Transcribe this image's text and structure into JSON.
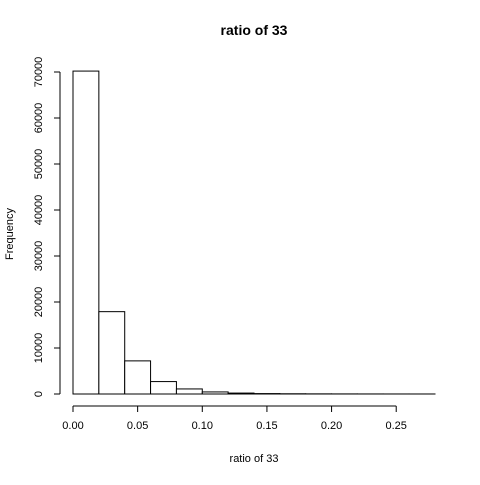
{
  "chart_data": {
    "type": "bar",
    "title": "ratio of 33",
    "xlabel": "ratio of 33",
    "ylabel": "Frequency",
    "bin_edges": [
      0.0,
      0.02,
      0.04,
      0.06,
      0.08,
      0.1,
      0.12,
      0.14,
      0.16,
      0.18,
      0.2,
      0.22,
      0.24,
      0.26,
      0.28
    ],
    "values": [
      70200,
      17900,
      7200,
      2700,
      1100,
      450,
      200,
      90,
      50,
      30,
      20,
      12,
      8,
      5
    ],
    "xlim": [
      0.0,
      0.28
    ],
    "ylim": [
      0,
      70000
    ],
    "x_ticks": [
      0.0,
      0.05,
      0.1,
      0.15,
      0.2,
      0.25
    ],
    "x_tick_labels": [
      "0.00",
      "0.05",
      "0.10",
      "0.15",
      "0.20",
      "0.25"
    ],
    "y_ticks": [
      0,
      10000,
      20000,
      30000,
      40000,
      50000,
      60000,
      70000
    ],
    "y_tick_labels": [
      "0",
      "10000",
      "20000",
      "30000",
      "40000",
      "50000",
      "60000",
      "70000"
    ],
    "grid": false,
    "bar_fill": "#ffffff",
    "bar_stroke": "#000000"
  }
}
